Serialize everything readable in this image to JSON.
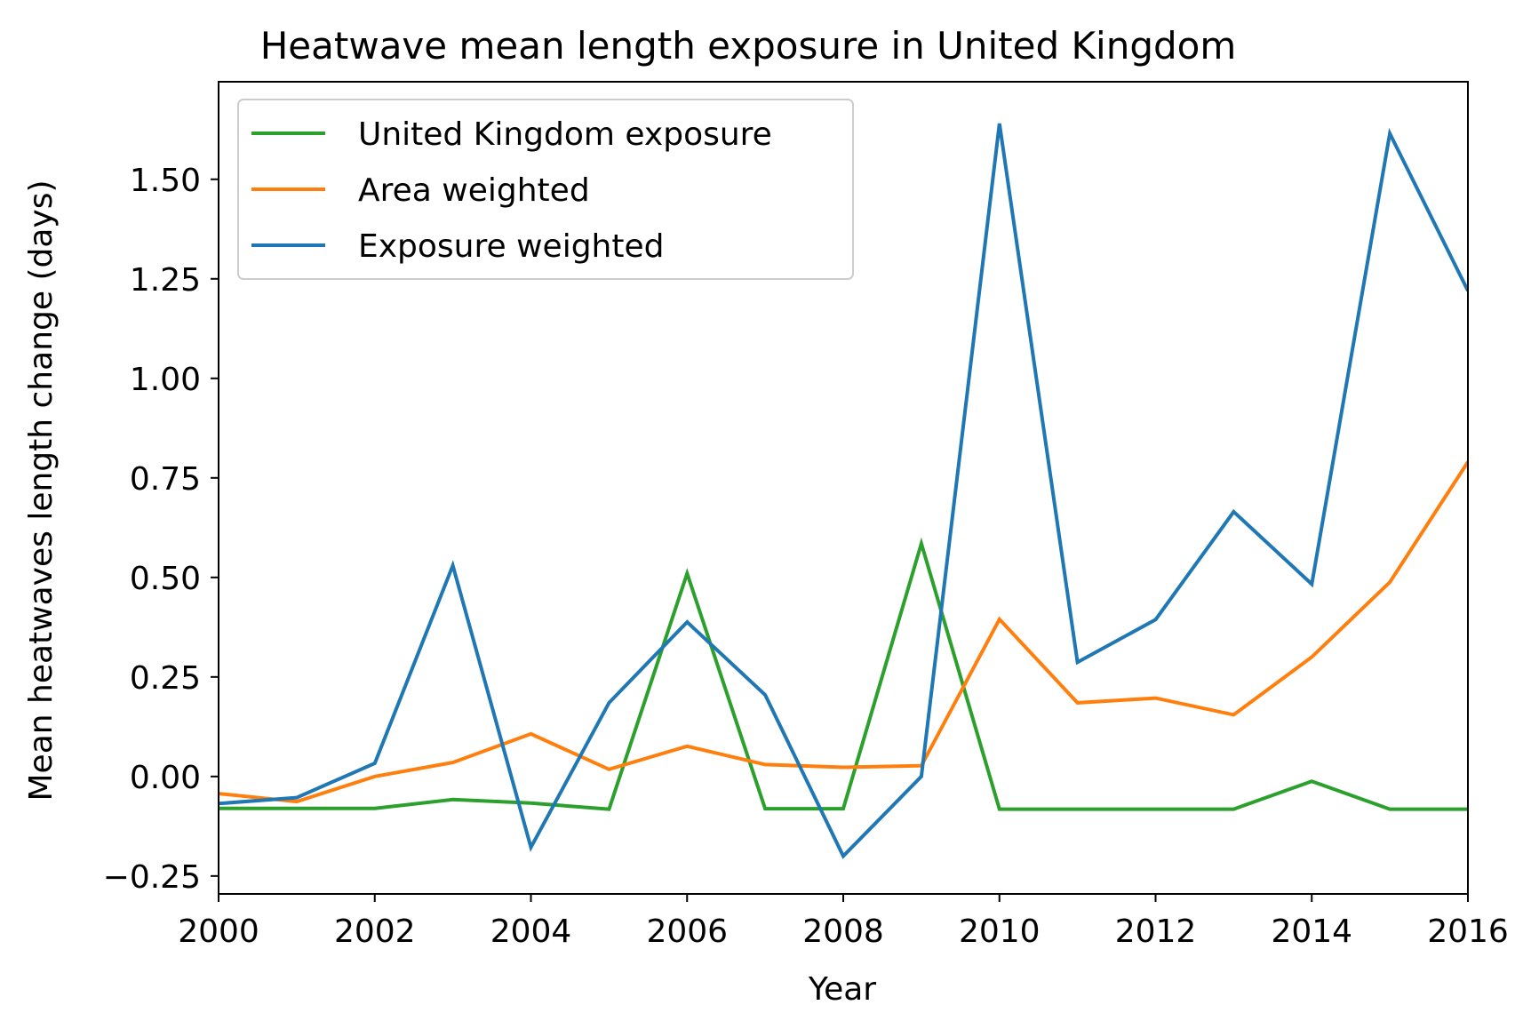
{
  "chart_data": {
    "type": "line",
    "title": "Heatwave mean length exposure in United Kingdom",
    "xlabel": "Year",
    "ylabel": "Mean heatwaves length change (days)",
    "xlim": [
      2000,
      2016
    ],
    "ylim": [
      -0.295,
      1.745
    ],
    "x_ticks": [
      2000,
      2002,
      2004,
      2006,
      2008,
      2010,
      2012,
      2014,
      2016
    ],
    "y_ticks": [
      -0.25,
      0.0,
      0.25,
      0.5,
      0.75,
      1.0,
      1.25,
      1.5
    ],
    "y_tick_labels": [
      "−0.25",
      "0.00",
      "0.25",
      "0.50",
      "0.75",
      "1.00",
      "1.25",
      "1.50"
    ],
    "grid": false,
    "legend_position": "top-left",
    "x": [
      2000,
      2001,
      2002,
      2003,
      2004,
      2005,
      2006,
      2007,
      2008,
      2009,
      2010,
      2011,
      2012,
      2013,
      2014,
      2015,
      2016
    ],
    "series": [
      {
        "name": "United Kingdom exposure",
        "color": "#2ca02c",
        "values": [
          -0.08,
          -0.08,
          -0.08,
          -0.058,
          -0.067,
          -0.082,
          0.51,
          -0.081,
          -0.081,
          0.585,
          -0.082,
          -0.082,
          -0.082,
          -0.082,
          -0.012,
          -0.082,
          -0.082
        ]
      },
      {
        "name": "Area weighted",
        "color": "#ff7f0e",
        "values": [
          -0.043,
          -0.063,
          0.0,
          0.035,
          0.107,
          0.018,
          0.076,
          0.03,
          0.023,
          0.027,
          0.395,
          0.185,
          0.197,
          0.155,
          0.3,
          0.488,
          0.79
        ]
      },
      {
        "name": "Exposure weighted",
        "color": "#1f77b4",
        "values": [
          -0.068,
          -0.053,
          0.033,
          0.53,
          -0.178,
          0.185,
          0.388,
          0.205,
          -0.2,
          0.0,
          1.64,
          0.287,
          0.394,
          0.665,
          0.483,
          1.615,
          1.22
        ]
      }
    ]
  }
}
